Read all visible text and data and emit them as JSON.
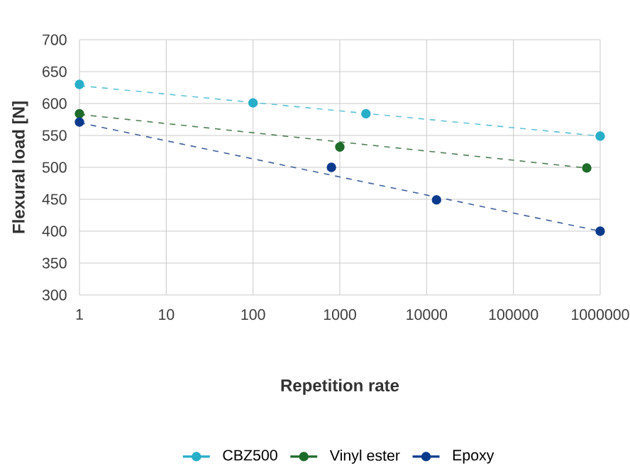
{
  "chart_data": {
    "type": "scatter",
    "xlabel": "Repetition rate",
    "ylabel": "Flexural load [N]",
    "log": "x",
    "grid": true,
    "legend": "bottom",
    "marker": "circle",
    "xlim": [
      1,
      1000000
    ],
    "xticks": [
      1,
      10,
      100,
      1000,
      10000,
      100000,
      1000000
    ],
    "ylim": [
      300,
      700
    ],
    "yticks": [
      300,
      350,
      400,
      450,
      500,
      550,
      600,
      650,
      700
    ],
    "series": [
      {
        "name": "CBZ500",
        "color": "#27aec9",
        "x": [
          1,
          100,
          2000,
          1000000
        ],
        "values": [
          630,
          601,
          584,
          549
        ]
      },
      {
        "name": "Vinyl ester",
        "color": "#1e6b2a",
        "x": [
          1,
          1000,
          700000
        ],
        "values": [
          584,
          532,
          499
        ]
      },
      {
        "name": "Epoxy",
        "color": "#0b3a8c",
        "x": [
          1,
          800,
          13000,
          1000000
        ],
        "values": [
          571,
          500,
          449,
          400
        ]
      },
      {
        "type": "line",
        "marker": "none",
        "line_style": "dashed",
        "color": "#5fc3d6",
        "x": [
          1,
          1000000
        ],
        "values": [
          628,
          549
        ]
      },
      {
        "type": "line",
        "marker": "none",
        "line_style": "dashed",
        "color": "#4f7f55",
        "x": [
          1,
          700000
        ],
        "values": [
          583,
          499
        ]
      },
      {
        "type": "line",
        "marker": "none",
        "line_style": "dashed",
        "color": "#3d5f9a",
        "x": [
          1,
          1000000
        ],
        "values": [
          570,
          400
        ]
      }
    ]
  }
}
